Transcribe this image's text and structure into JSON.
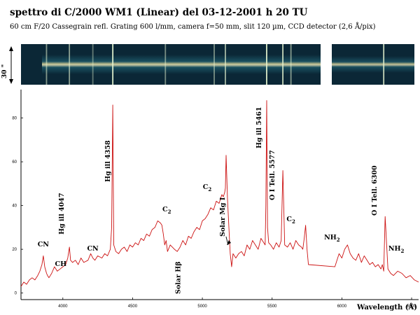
{
  "header": {
    "title": "spettro di C/2000 WM1 (Linear)  del 03-12-2001 h 20 TU",
    "subtitle": "60 cm F/20 Cassegrain refl. Grating 600 l/mm, camera f=50 mm, slit 120 µm, CCD detector (2,6 Å/pix)",
    "strip_scale_label": "30 \""
  },
  "colors": {
    "spectrum_line": "#cc1111",
    "strip_bg": "#0a2a3a",
    "strip_glow": "#f4e9a0"
  },
  "chart_data": {
    "type": "line",
    "xlabel": "Wavelength (Å)",
    "ylabel": "",
    "xlim": [
      3700,
      6550
    ],
    "ylim": [
      -3,
      93
    ],
    "xticks": [
      4000,
      4500,
      5000,
      5500,
      6000,
      6500
    ],
    "yticks": [
      0,
      20,
      40,
      60,
      80
    ],
    "grid": false,
    "series": [
      {
        "values_note": "",
        "x": [
          3700,
          3720,
          3740,
          3760,
          3780,
          3800,
          3820,
          3835,
          3850,
          3860,
          3870,
          3883,
          3890,
          3900,
          3920,
          3940,
          3960,
          3980,
          4000,
          4020,
          4035,
          4047,
          4055,
          4070,
          4090,
          4110,
          4130,
          4150,
          4180,
          4200,
          4215,
          4230,
          4250,
          4280,
          4300,
          4320,
          4340,
          4350,
          4358,
          4365,
          4380,
          4400,
          4420,
          4440,
          4460,
          4480,
          4500,
          4520,
          4540,
          4560,
          4580,
          4600,
          4620,
          4640,
          4660,
          4680,
          4700,
          4710,
          4720,
          4730,
          4740,
          4750,
          4770,
          4800,
          4820,
          4840,
          4860,
          4880,
          4900,
          4920,
          4940,
          4960,
          4980,
          5000,
          5020,
          5040,
          5060,
          5080,
          5100,
          5120,
          5140,
          5150,
          5160,
          5165,
          5170,
          5180,
          5190,
          5200,
          5210,
          5220,
          5240,
          5260,
          5280,
          5300,
          5320,
          5340,
          5360,
          5380,
          5400,
          5420,
          5440,
          5450,
          5455,
          5461,
          5467,
          5475,
          5490,
          5510,
          5530,
          5550,
          5565,
          5577,
          5590,
          5610,
          5630,
          5650,
          5670,
          5690,
          5710,
          5720,
          5730,
          5740,
          5750,
          5760,
          5950,
          5980,
          6000,
          6020,
          6040,
          6060,
          6080,
          6100,
          6120,
          6140,
          6160,
          6180,
          6200,
          6220,
          6240,
          6260,
          6280,
          6290,
          6300,
          6310,
          6330,
          6350,
          6370,
          6400,
          6430,
          6460,
          6490,
          6520,
          6550
        ],
        "y": [
          3,
          5,
          4,
          6,
          7,
          6,
          8,
          10,
          13,
          17,
          12,
          9,
          8,
          7,
          9,
          12,
          10,
          11,
          12,
          13,
          16,
          21,
          15,
          14,
          15,
          13,
          16,
          14,
          15,
          18,
          16,
          15,
          17,
          16,
          18,
          17,
          20,
          30,
          86,
          22,
          19,
          18,
          20,
          21,
          19,
          22,
          21,
          23,
          22,
          25,
          24,
          27,
          26,
          29,
          30,
          33,
          32,
          31,
          27,
          22,
          24,
          19,
          22,
          20,
          19,
          21,
          24,
          22,
          26,
          25,
          28,
          30,
          29,
          33,
          34,
          36,
          39,
          38,
          42,
          41,
          45,
          44,
          46,
          48,
          63,
          43,
          30,
          18,
          12,
          18,
          16,
          18,
          19,
          17,
          22,
          20,
          24,
          22,
          20,
          25,
          23,
          22,
          40,
          88,
          30,
          23,
          22,
          20,
          23,
          21,
          24,
          56,
          22,
          21,
          23,
          20,
          24,
          22,
          21,
          20,
          25,
          31,
          20,
          13,
          12,
          18,
          16,
          20,
          22,
          18,
          16,
          15,
          18,
          14,
          17,
          15,
          13,
          14,
          12,
          13,
          11,
          13,
          10,
          35,
          11,
          9,
          8,
          10,
          9,
          7,
          8,
          6,
          5
        ]
      }
    ],
    "annotations": [
      {
        "text": "CN",
        "x": 3860
      },
      {
        "text": "CH",
        "x": 3985
      },
      {
        "text": "Hg ill 4047",
        "x": 4047
      },
      {
        "text": "CN",
        "x": 4215
      },
      {
        "text": "Hg ill 4358",
        "x": 4358
      },
      {
        "text": "C",
        "sub": "2",
        "x": 4735
      },
      {
        "text": "Solar Hβ",
        "x": 4861
      },
      {
        "text": "C",
        "sub": "2",
        "x": 5085
      },
      {
        "text": "Solar Mg I",
        "x": 5200
      },
      {
        "text": "Hg ill 5461",
        "x": 5461
      },
      {
        "text": "O I Tell. 5577",
        "x": 5577
      },
      {
        "text": "C",
        "sub": "2",
        "x": 5635
      },
      {
        "text": "NH",
        "sub": "2",
        "x": 5980
      },
      {
        "text": "O I Tell. 6300",
        "x": 6300
      },
      {
        "text": "NH",
        "sub": "2",
        "x": 6390
      }
    ]
  }
}
